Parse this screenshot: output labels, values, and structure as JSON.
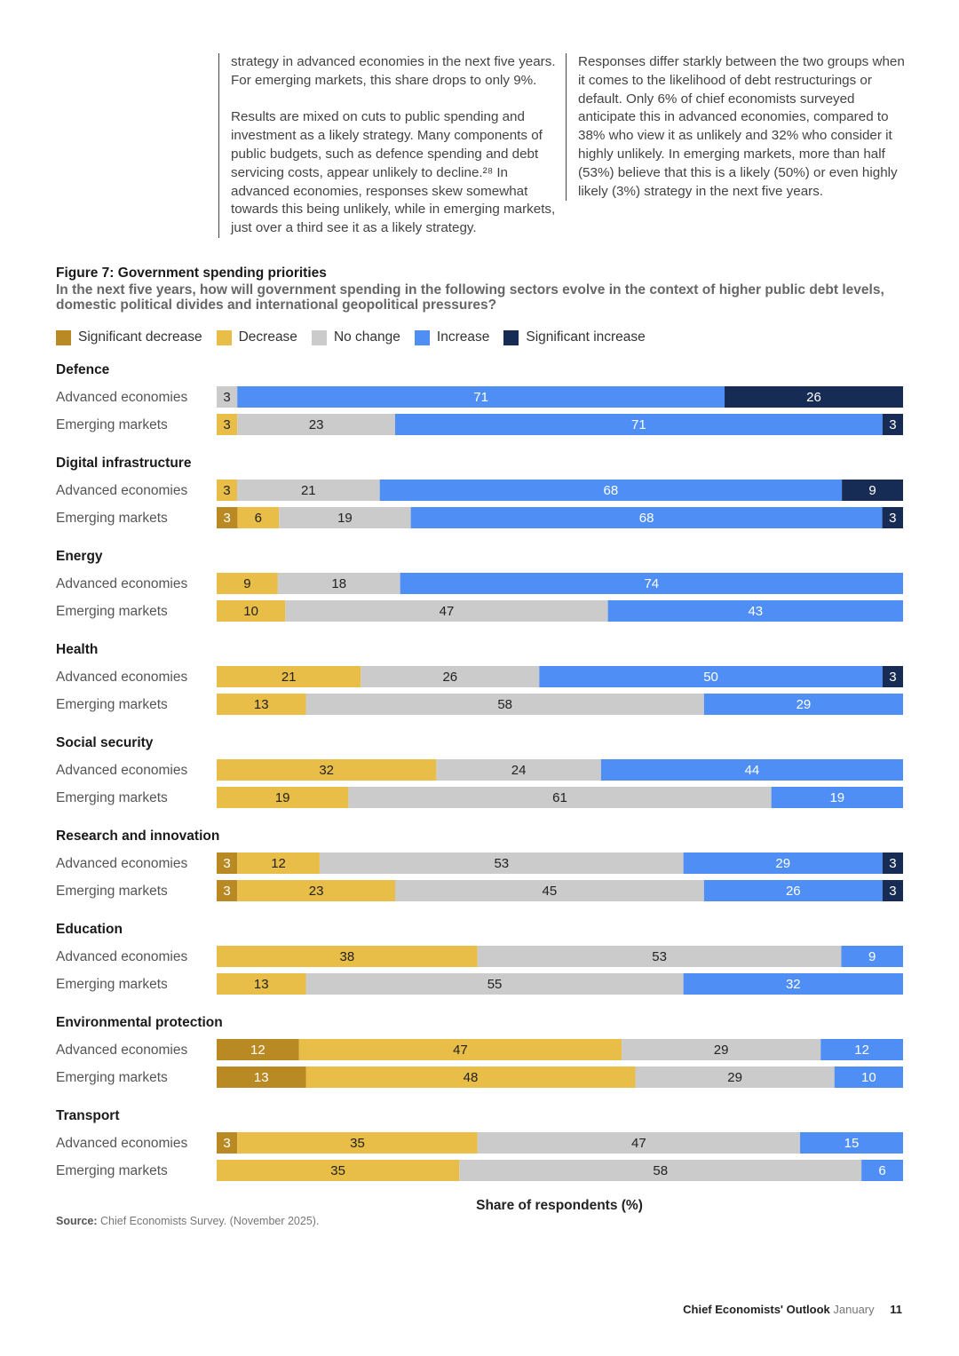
{
  "text_columns": {
    "left": [
      "strategy in advanced economies in the next five years. For emerging markets, this share drops to only 9%.",
      "Results are mixed on cuts to public spending and investment as a likely strategy. Many components of public budgets, such as defence spending and debt servicing costs, appear unlikely to decline.²⁸ In advanced economies, responses skew somewhat towards this being unlikely, while in emerging markets, just over a third see it as a likely strategy."
    ],
    "right": [
      "Responses differ starkly between the two groups when it comes to the likelihood of debt restructurings or default. Only 6% of chief economists surveyed anticipate this in advanced economies, compared to 38% who view it as unlikely and 32% who consider it highly unlikely. In emerging markets, more than half (53%) believe that this is a likely (50%) or even highly likely (3%) strategy in the next five years."
    ]
  },
  "footer": {
    "publication": "Chief Economists' Outlook",
    "month": "January",
    "page": "11"
  },
  "colors": {
    "significant_decrease": "#b98a24",
    "decrease": "#e8bd48",
    "no_change": "#cbcbcb",
    "increase": "#4f8ff5",
    "significant_increase": "#172c55"
  },
  "chart_data": {
    "type": "bar",
    "orientation": "horizontal-stacked-100",
    "title": "Figure 7: Government spending priorities",
    "subtitle": "In the next five years, how will government spending in the following sectors evolve in the context of higher public debt levels, domestic political divides and international geopolitical pressures?",
    "xlabel": "Share of respondents (%)",
    "xlim": [
      0,
      100
    ],
    "source_label": "Source:",
    "source": "Chief Economists Survey. (November 2025).",
    "legend": [
      "Significant decrease",
      "Decrease",
      "No change",
      "Increase",
      "Significant increase"
    ],
    "groups": [
      {
        "name": "Defence",
        "rows": [
          {
            "label": "Advanced economies",
            "values": [
              0,
              0,
              3,
              71,
              26
            ]
          },
          {
            "label": "Emerging markets",
            "values": [
              0,
              3,
              23,
              71,
              3
            ]
          }
        ]
      },
      {
        "name": "Digital infrastructure",
        "rows": [
          {
            "label": "Advanced economies",
            "values": [
              0,
              3,
              21,
              68,
              9
            ]
          },
          {
            "label": "Emerging markets",
            "values": [
              3,
              6,
              19,
              68,
              3
            ]
          }
        ]
      },
      {
        "name": "Energy",
        "rows": [
          {
            "label": "Advanced economies",
            "values": [
              0,
              9,
              18,
              74,
              0
            ]
          },
          {
            "label": "Emerging markets",
            "values": [
              0,
              10,
              47,
              43,
              0
            ]
          }
        ]
      },
      {
        "name": "Health",
        "rows": [
          {
            "label": "Advanced economies",
            "values": [
              0,
              21,
              26,
              50,
              3
            ]
          },
          {
            "label": "Emerging markets",
            "values": [
              0,
              13,
              58,
              29,
              0
            ]
          }
        ]
      },
      {
        "name": "Social security",
        "rows": [
          {
            "label": "Advanced economies",
            "values": [
              0,
              32,
              24,
              44,
              0
            ]
          },
          {
            "label": "Emerging markets",
            "values": [
              0,
              19,
              61,
              19,
              0
            ]
          }
        ]
      },
      {
        "name": "Research and innovation",
        "rows": [
          {
            "label": "Advanced economies",
            "values": [
              3,
              12,
              53,
              29,
              3
            ]
          },
          {
            "label": "Emerging markets",
            "values": [
              3,
              23,
              45,
              26,
              3
            ]
          }
        ]
      },
      {
        "name": "Education",
        "rows": [
          {
            "label": "Advanced economies",
            "values": [
              0,
              38,
              53,
              9,
              0
            ]
          },
          {
            "label": "Emerging markets",
            "values": [
              0,
              13,
              55,
              32,
              0
            ]
          }
        ]
      },
      {
        "name": "Environmental protection",
        "rows": [
          {
            "label": "Advanced economies",
            "values": [
              12,
              47,
              29,
              12,
              0
            ]
          },
          {
            "label": "Emerging markets",
            "values": [
              13,
              48,
              29,
              10,
              0
            ]
          }
        ]
      },
      {
        "name": "Transport",
        "rows": [
          {
            "label": "Advanced economies",
            "values": [
              3,
              35,
              47,
              15,
              0
            ]
          },
          {
            "label": "Emerging markets",
            "values": [
              0,
              35,
              58,
              6,
              0
            ]
          }
        ]
      }
    ]
  }
}
